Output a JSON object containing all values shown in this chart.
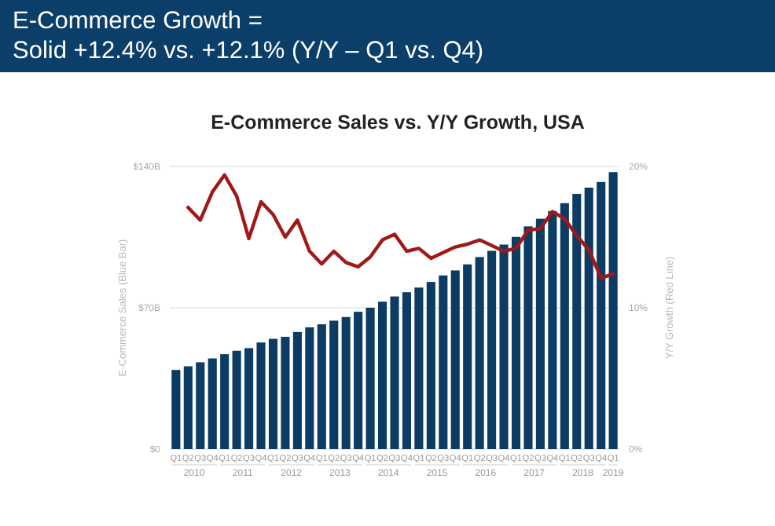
{
  "chart_data": {
    "type": "bar",
    "title": "E-Commerce Growth =\nSolid +12.4% vs. +12.1% (Y/Y – Q1 vs. Q4)",
    "subtitle": "E-Commerce Sales vs. Y/Y Growth, USA",
    "ylabel": "E-Commerce Sales (Blue Bar)",
    "y2label": "Y/Y Growth (Red Line)",
    "categories": [
      "Q1",
      "Q2",
      "Q3",
      "Q4",
      "Q1",
      "Q2",
      "Q3",
      "Q4",
      "Q1",
      "Q2",
      "Q3",
      "Q4",
      "Q1",
      "Q2",
      "Q3",
      "Q4",
      "Q1",
      "Q2",
      "Q3",
      "Q4",
      "Q1",
      "Q2",
      "Q3",
      "Q4",
      "Q1",
      "Q2",
      "Q3",
      "Q4",
      "Q1",
      "Q2",
      "Q3",
      "Q4",
      "Q1",
      "Q2",
      "Q3",
      "Q4",
      "Q1"
    ],
    "series": [
      {
        "color": "#0c3c63",
        "values": [
          39.2,
          41,
          43,
          44.9,
          47,
          48.7,
          50,
          52.8,
          54.6,
          55.6,
          58,
          60.3,
          61.8,
          63.6,
          65.4,
          68,
          70,
          73,
          75.6,
          77.7,
          80,
          82.8,
          86,
          88.5,
          91.5,
          95.1,
          98.2,
          101.3,
          105.1,
          110.3,
          114.1,
          117.9,
          121.8,
          126.4,
          129.5,
          132.3,
          137.2
        ]
      },
      {
        "type": "line",
        "axis": "y2",
        "color": "#a01818",
        "values": [
          null,
          17.1,
          16.2,
          18.2,
          19.4,
          17.9,
          14.9,
          17.5,
          16.6,
          15.0,
          16.2,
          14.0,
          13.1,
          14.0,
          13.2,
          12.9,
          13.6,
          14.8,
          15.2,
          14.0,
          14.2,
          13.5,
          13.9,
          14.3,
          14.5,
          14.8,
          14.4,
          14.0,
          14.2,
          15.5,
          15.6,
          16.8,
          16.3,
          15.1,
          14.1,
          12.1,
          12.4
        ]
      }
    ],
    "ylim": [
      0,
      140
    ],
    "yticks": [
      {
        "value": 0,
        "label": "$0"
      },
      {
        "value": 70,
        "label": "$70B"
      },
      {
        "value": 140,
        "label": "$140B"
      }
    ],
    "y2lim": [
      0,
      20
    ],
    "y2ticks": [
      {
        "value": 0,
        "label": "0%"
      },
      {
        "value": 10,
        "label": "10%"
      },
      {
        "value": 20,
        "label": "20%"
      }
    ],
    "grid": "y",
    "annotations": [
      "2010",
      "2011",
      "2012",
      "2013",
      "2014",
      "2015",
      "2016",
      "2017",
      "2018",
      "2019"
    ]
  }
}
